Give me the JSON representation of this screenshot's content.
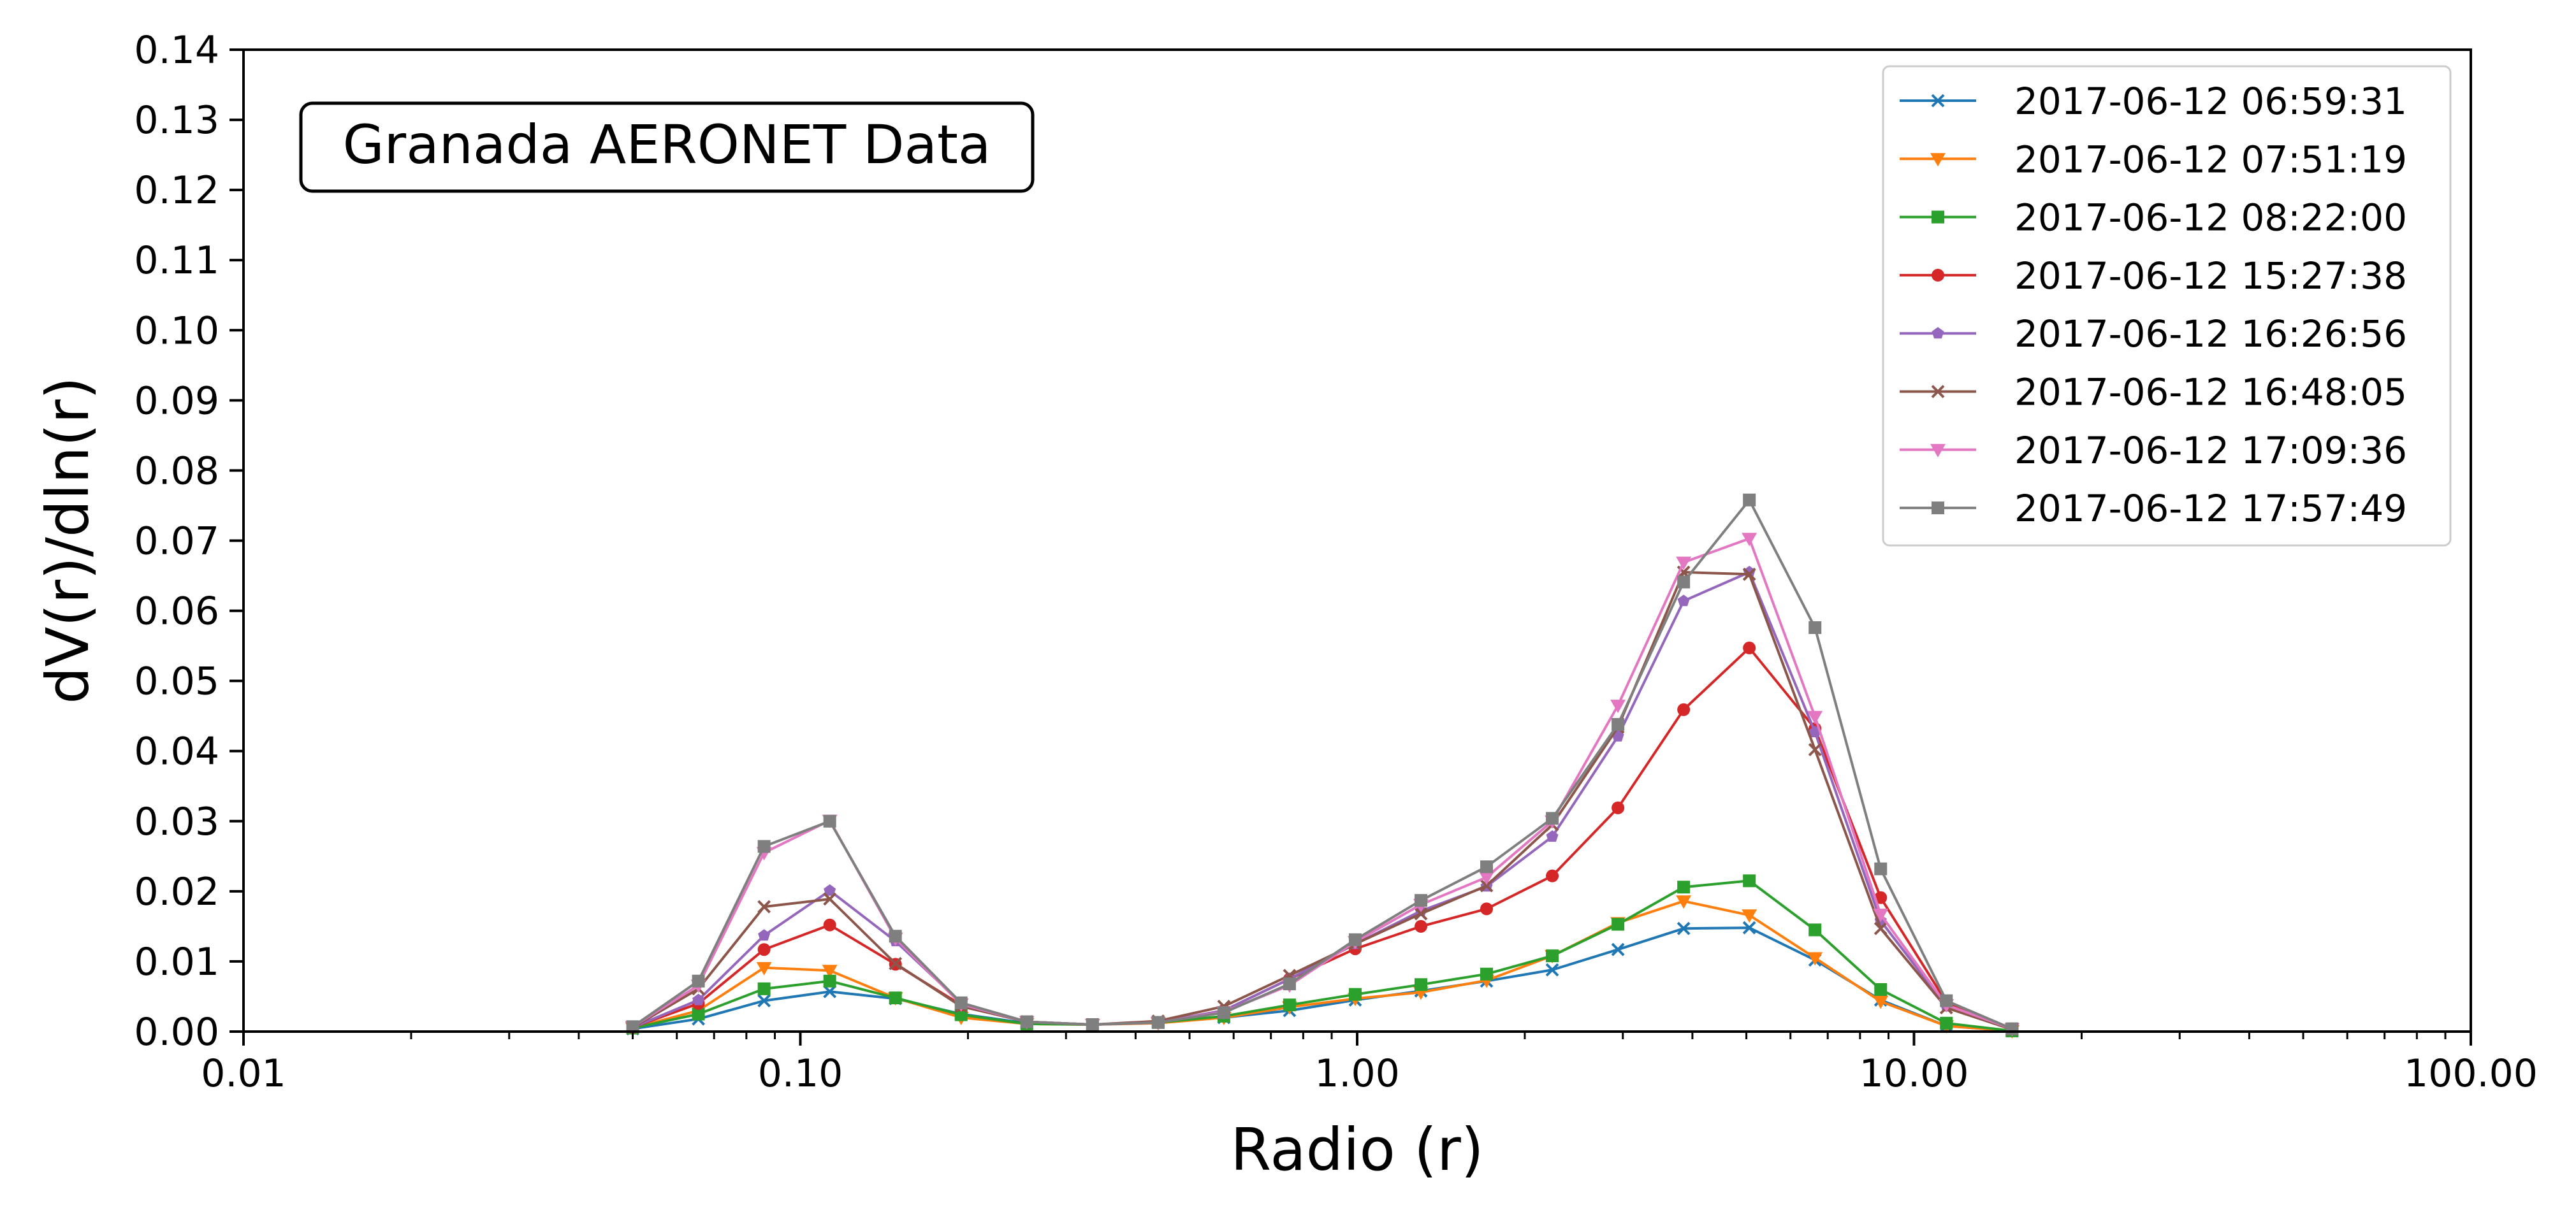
{
  "chart_data": {
    "type": "line",
    "xlabel": "Radio (r)",
    "ylabel": "dV(r)/dln(r)",
    "x_scale": "log",
    "xlim": [
      0.01,
      100
    ],
    "ylim": [
      0,
      0.14
    ],
    "x_ticks": [
      0.01,
      0.1,
      1,
      10,
      100
    ],
    "x_tick_labels": [
      "0.01",
      "0.10",
      "1.00",
      "10.00",
      "100.00"
    ],
    "y_ticks": [
      0,
      0.01,
      0.02,
      0.03,
      0.04,
      0.05,
      0.06,
      0.07,
      0.08,
      0.09,
      0.1,
      0.11,
      0.12,
      0.13,
      0.14
    ],
    "y_tick_labels": [
      "0.00",
      "0.01",
      "0.02",
      "0.03",
      "0.04",
      "0.05",
      "0.06",
      "0.07",
      "0.08",
      "0.09",
      "0.10",
      "0.11",
      "0.12",
      "0.13",
      "0.14"
    ],
    "grid": false,
    "legend_position": "top-right",
    "annotation": "Granada AERONET Data",
    "x": [
      0.05,
      0.065604,
      0.086077,
      0.112939,
      0.148184,
      0.194429,
      0.255105,
      0.334716,
      0.439173,
      0.576227,
      0.756052,
      0.991996,
      1.301571,
      1.707757,
      2.240702,
      2.939966,
      3.857452,
      5.06126,
      6.640745,
      8.713145,
      11.432287,
      15.0
    ],
    "series": [
      {
        "name": "2017-06-12 06:59:31",
        "color": "#1f77b4",
        "marker": "x",
        "values": [
          0.0004,
          0.0018,
          0.0044,
          0.0057,
          0.0047,
          0.0025,
          0.0012,
          0.001,
          0.0013,
          0.002,
          0.003,
          0.0045,
          0.0058,
          0.0072,
          0.0088,
          0.0117,
          0.0147,
          0.0148,
          0.0102,
          0.0045,
          0.0008,
          0.0001
        ]
      },
      {
        "name": "2017-06-12 07:51:19",
        "color": "#ff7f0e",
        "marker": "triangle_down",
        "values": [
          0.0005,
          0.003,
          0.0091,
          0.0087,
          0.0048,
          0.002,
          0.0011,
          0.001,
          0.0012,
          0.002,
          0.0035,
          0.0047,
          0.0056,
          0.0073,
          0.0108,
          0.0155,
          0.0186,
          0.0166,
          0.0105,
          0.0043,
          0.0008,
          0.0001
        ]
      },
      {
        "name": "2017-06-12 08:22:00",
        "color": "#2ca02c",
        "marker": "square",
        "values": [
          0.0005,
          0.0025,
          0.0061,
          0.0072,
          0.0048,
          0.0024,
          0.0011,
          0.001,
          0.0013,
          0.0022,
          0.0038,
          0.0053,
          0.0067,
          0.0082,
          0.0108,
          0.0153,
          0.0206,
          0.0215,
          0.0145,
          0.006,
          0.0012,
          0.0001
        ]
      },
      {
        "name": "2017-06-12 15:27:38",
        "color": "#d62728",
        "marker": "circle",
        "values": [
          0.0006,
          0.004,
          0.0117,
          0.0152,
          0.0096,
          0.0038,
          0.0014,
          0.001,
          0.0013,
          0.003,
          0.0075,
          0.0118,
          0.015,
          0.0175,
          0.0222,
          0.0319,
          0.0459,
          0.0547,
          0.0432,
          0.0191,
          0.0042,
          0.0004
        ]
      },
      {
        "name": "2017-06-12 16:26:56",
        "color": "#9467bd",
        "marker": "pentagon",
        "values": [
          0.0006,
          0.0045,
          0.0137,
          0.0201,
          0.0129,
          0.0041,
          0.0014,
          0.001,
          0.0013,
          0.003,
          0.0075,
          0.0125,
          0.0172,
          0.0207,
          0.0278,
          0.0421,
          0.0614,
          0.0655,
          0.0427,
          0.0158,
          0.0036,
          0.0003
        ]
      },
      {
        "name": "2017-06-12 16:48:05",
        "color": "#8c564b",
        "marker": "x",
        "values": [
          0.0006,
          0.0061,
          0.0178,
          0.0189,
          0.0097,
          0.0036,
          0.0014,
          0.001,
          0.0015,
          0.0036,
          0.008,
          0.0125,
          0.0168,
          0.0208,
          0.0295,
          0.0434,
          0.0655,
          0.0652,
          0.0402,
          0.0147,
          0.0034,
          0.0003
        ]
      },
      {
        "name": "2017-06-12 17:09:36",
        "color": "#e377c2",
        "marker": "triangle_down",
        "values": [
          0.0007,
          0.0066,
          0.0255,
          0.0301,
          0.0133,
          0.0039,
          0.0014,
          0.001,
          0.0013,
          0.0028,
          0.0066,
          0.0128,
          0.0181,
          0.022,
          0.03,
          0.0465,
          0.0669,
          0.0703,
          0.0449,
          0.0167,
          0.0038,
          0.0004
        ]
      },
      {
        "name": "2017-06-12 17:57:49",
        "color": "#7f7f7f",
        "marker": "square",
        "values": [
          0.0007,
          0.0072,
          0.0264,
          0.03,
          0.0136,
          0.0041,
          0.0014,
          0.001,
          0.0013,
          0.0027,
          0.0068,
          0.0131,
          0.0187,
          0.0235,
          0.0304,
          0.0438,
          0.0641,
          0.0758,
          0.0576,
          0.0232,
          0.0044,
          0.0004
        ]
      }
    ]
  }
}
